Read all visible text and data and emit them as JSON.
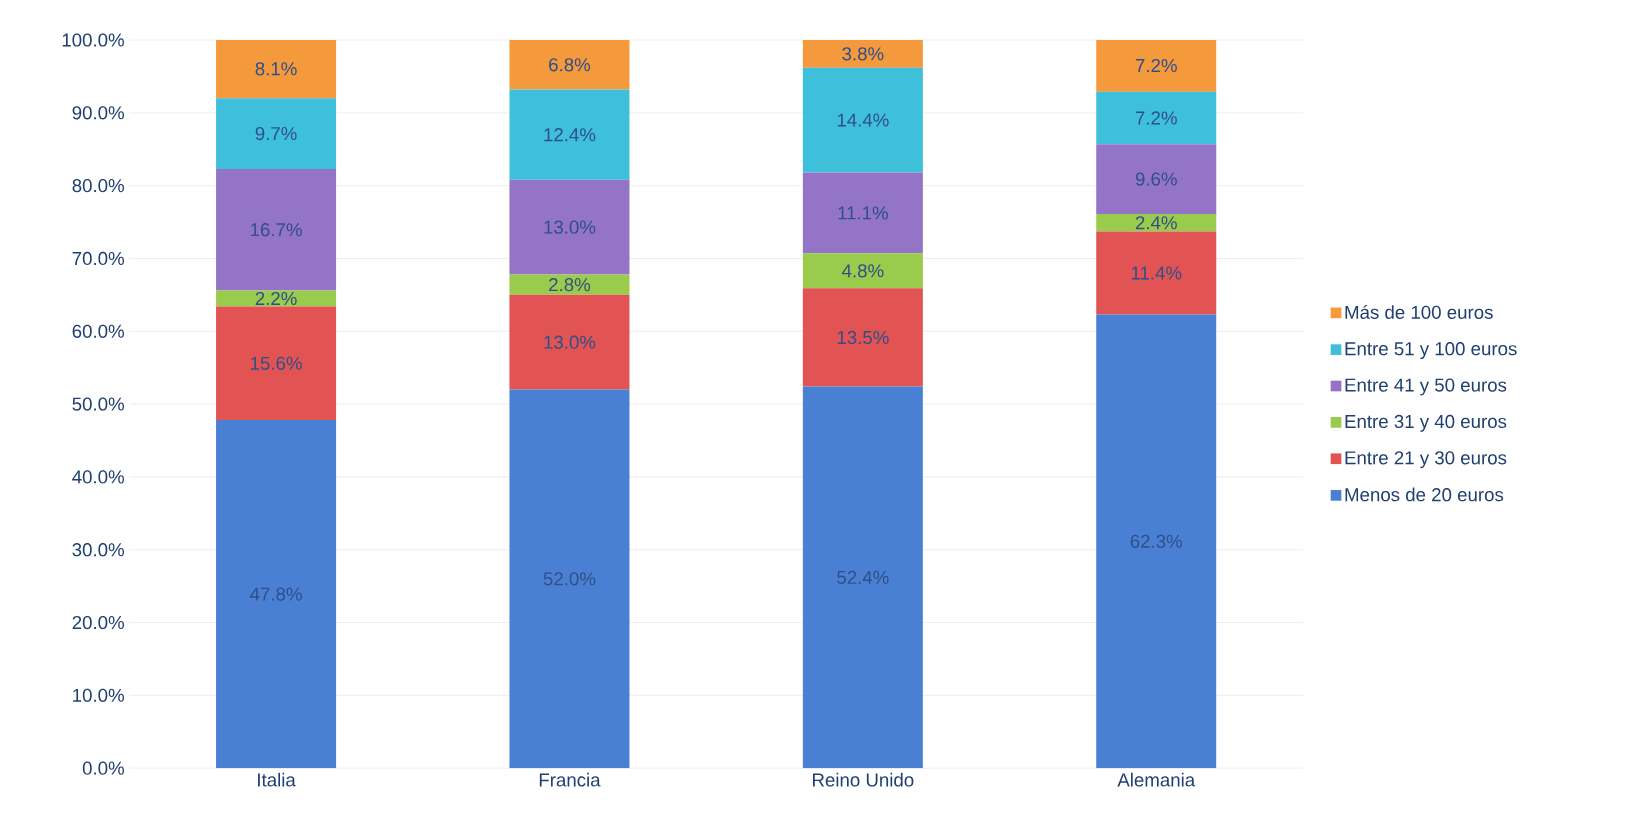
{
  "chart_data": {
    "type": "bar",
    "stacked": true,
    "categories": [
      "Italia",
      "Francia",
      "Reino Unido",
      "Alemania"
    ],
    "series": [
      {
        "name": "Menos de 20 euros",
        "color": "#4a80d4",
        "values": [
          47.8,
          52.0,
          52.4,
          62.3
        ],
        "value_labels": [
          "47.8%",
          "52.0%",
          "52.4%",
          "62.3%"
        ]
      },
      {
        "name": "Entre 21 y 30 euros",
        "color": "#e25353",
        "values": [
          15.6,
          13.0,
          13.5,
          11.4
        ],
        "value_labels": [
          "15.6%",
          "13.0%",
          "13.5%",
          "11.4%"
        ]
      },
      {
        "name": "Entre 31 y 40 euros",
        "color": "#9acb4c",
        "values": [
          2.2,
          2.8,
          4.8,
          2.4
        ],
        "value_labels": [
          "2.2%",
          "2.8%",
          "4.8%",
          "2.4%"
        ]
      },
      {
        "name": "Entre 41 y 50 euros",
        "color": "#9474c6",
        "values": [
          16.7,
          13.0,
          11.1,
          9.6
        ],
        "value_labels": [
          "16.7%",
          "13.0%",
          "11.1%",
          "9.6%"
        ]
      },
      {
        "name": "Entre 51 y 100 euros",
        "color": "#3fc0da",
        "values": [
          9.7,
          12.4,
          14.4,
          7.2
        ],
        "value_labels": [
          "9.7%",
          "12.4%",
          "14.4%",
          "7.2%"
        ]
      },
      {
        "name": "Más de 100 euros",
        "color": "#f59a3c",
        "values": [
          8.1,
          6.8,
          3.8,
          7.2
        ],
        "value_labels": [
          "8.1%",
          "6.8%",
          "3.8%",
          "7.2%"
        ]
      }
    ],
    "ylim": [
      0,
      100
    ],
    "yticks": [
      {
        "value": 0,
        "label": "0.0%"
      },
      {
        "value": 10,
        "label": "10.0%"
      },
      {
        "value": 20,
        "label": "20.0%"
      },
      {
        "value": 30,
        "label": "30.0%"
      },
      {
        "value": 40,
        "label": "40.0%"
      },
      {
        "value": 50,
        "label": "50.0%"
      },
      {
        "value": 60,
        "label": "60.0%"
      },
      {
        "value": 70,
        "label": "70.0%"
      },
      {
        "value": 80,
        "label": "80.0%"
      },
      {
        "value": 90,
        "label": "90.0%"
      },
      {
        "value": 100,
        "label": "100.0%"
      }
    ],
    "grid": "y",
    "legend": "right"
  }
}
